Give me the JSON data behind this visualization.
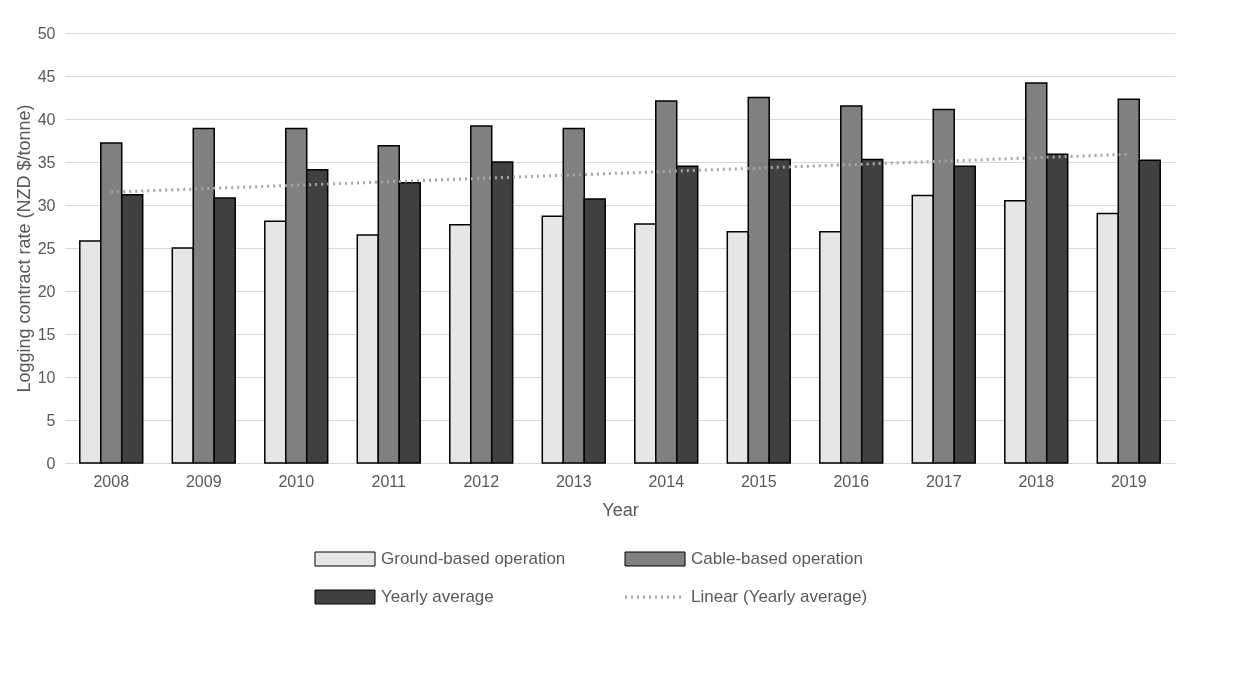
{
  "chart_data": {
    "type": "bar",
    "xlabel": "Year",
    "ylabel": "Logging contract rate (NZD $/tonne)",
    "categories": [
      "2008",
      "2009",
      "2010",
      "2011",
      "2012",
      "2013",
      "2014",
      "2015",
      "2016",
      "2017",
      "2018",
      "2019"
    ],
    "series": [
      {
        "name": "Ground-based operation",
        "color": "#e6e6e6",
        "values": [
          25.8,
          25.0,
          28.1,
          26.5,
          27.7,
          28.7,
          27.8,
          26.9,
          26.9,
          31.1,
          30.5,
          29.0
        ]
      },
      {
        "name": "Cable-based operation",
        "color": "#808080",
        "values": [
          37.2,
          38.9,
          38.9,
          36.9,
          39.2,
          38.9,
          42.1,
          42.5,
          41.5,
          41.1,
          44.2,
          42.3
        ]
      },
      {
        "name": "Yearly average",
        "color": "#404040",
        "values": [
          31.2,
          30.8,
          34.1,
          32.6,
          35.0,
          30.7,
          34.5,
          35.3,
          35.3,
          34.5,
          35.9,
          35.2
        ]
      },
      {
        "name": "Linear (Yearly average)",
        "type": "line",
        "line_style": "dotted",
        "color": "#a6a6a6",
        "values": [
          31.5,
          31.9,
          32.3,
          32.7,
          33.1,
          33.5,
          33.9,
          34.3,
          34.7,
          35.1,
          35.5,
          35.9
        ]
      }
    ],
    "ylim": [
      0,
      50
    ],
    "yticks": [
      0,
      5,
      10,
      15,
      20,
      25,
      30,
      35,
      40,
      45,
      50
    ],
    "grid": "y",
    "legend": "bottom"
  }
}
